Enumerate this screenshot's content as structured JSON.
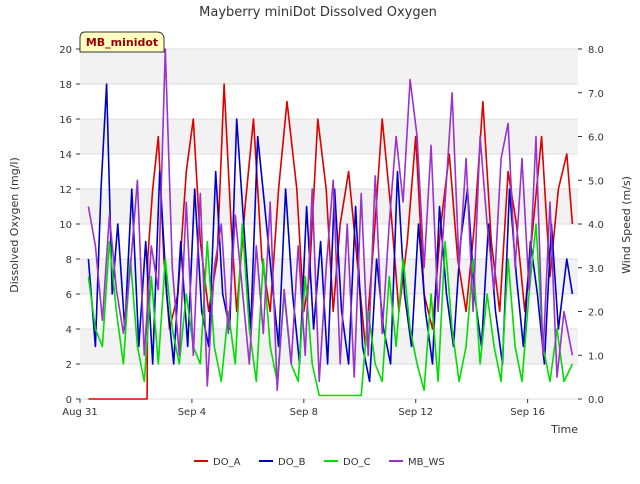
{
  "chart_data": {
    "type": "line",
    "title": "Mayberry miniDot Dissolved Oxygen",
    "xlabel": "Time",
    "ylabel": "Dissolved Oxygen (mg/l)",
    "y2label": "Wind Speed (m/s)",
    "badge": "MB_minidot",
    "xlim": [
      0,
      17.8
    ],
    "ylim": [
      0,
      20
    ],
    "y2lim": [
      0,
      8
    ],
    "x_ticks": [
      {
        "x": 0,
        "label": "Aug 31"
      },
      {
        "x": 4,
        "label": "Sep 4"
      },
      {
        "x": 8,
        "label": "Sep 8"
      },
      {
        "x": 12,
        "label": "Sep 12"
      },
      {
        "x": 16,
        "label": "Sep 16"
      }
    ],
    "y_ticks": [
      {
        "v": 0,
        "label": "0"
      },
      {
        "v": 2,
        "label": "2"
      },
      {
        "v": 4,
        "label": "4"
      },
      {
        "v": 6,
        "label": "6"
      },
      {
        "v": 8,
        "label": "8"
      },
      {
        "v": 10,
        "label": "10"
      },
      {
        "v": 12,
        "label": "12"
      },
      {
        "v": 14,
        "label": "14"
      },
      {
        "v": 16,
        "label": "16"
      },
      {
        "v": 18,
        "label": "18"
      },
      {
        "v": 20,
        "label": "20"
      }
    ],
    "y2_ticks": [
      {
        "v": 0,
        "label": "0.0"
      },
      {
        "v": 1,
        "label": "1.0"
      },
      {
        "v": 2,
        "label": "2.0"
      },
      {
        "v": 3,
        "label": "3.0"
      },
      {
        "v": 4,
        "label": "4.0"
      },
      {
        "v": 5,
        "label": "5.0"
      },
      {
        "v": 6,
        "label": "6.0"
      },
      {
        "v": 7,
        "label": "7.0"
      },
      {
        "v": 8,
        "label": "8.0"
      }
    ],
    "grid": true,
    "legend_position": "bottom",
    "series": [
      {
        "name": "DO_A",
        "color": "#dd0000",
        "axis": "left",
        "x": [
          0.3,
          1.2,
          2.4,
          2.42,
          2.6,
          2.8,
          3.0,
          3.2,
          3.5,
          3.8,
          4.05,
          4.3,
          4.6,
          4.9,
          5.15,
          5.4,
          5.6,
          5.9,
          6.2,
          6.5,
          6.8,
          7.1,
          7.4,
          7.75,
          8.0,
          8.2,
          8.5,
          8.8,
          9.05,
          9.3,
          9.6,
          9.9,
          10.2,
          10.5,
          10.8,
          11.1,
          11.4,
          11.7,
          12.0,
          12.3,
          12.6,
          12.9,
          13.2,
          13.5,
          13.8,
          14.1,
          14.4,
          14.7,
          15.0,
          15.3,
          15.6,
          15.9,
          16.2,
          16.5,
          16.8,
          17.1,
          17.4,
          17.6
        ],
        "y": [
          0,
          0,
          0,
          8,
          12,
          15,
          8,
          4,
          6,
          13,
          16,
          9,
          5,
          8,
          18,
          10,
          5,
          11,
          16,
          8,
          5,
          12,
          17,
          12,
          5,
          7,
          16,
          12,
          5,
          10,
          13,
          8,
          3,
          9,
          16,
          11,
          5,
          9,
          15,
          6,
          4,
          10,
          14,
          8,
          5,
          10,
          17,
          9,
          5,
          13,
          10,
          5,
          10,
          15,
          7,
          12,
          14,
          10
        ]
      },
      {
        "name": "DO_B",
        "color": "#0000cc",
        "axis": "left",
        "x": [
          0.3,
          0.55,
          0.75,
          0.95,
          1.15,
          1.35,
          1.6,
          1.85,
          2.1,
          2.35,
          2.6,
          2.85,
          3.1,
          3.35,
          3.6,
          3.85,
          4.1,
          4.35,
          4.6,
          4.85,
          5.1,
          5.35,
          5.6,
          5.85,
          6.1,
          6.35,
          6.6,
          6.85,
          7.1,
          7.35,
          7.6,
          7.85,
          8.1,
          8.35,
          8.6,
          8.85,
          9.1,
          9.35,
          9.6,
          9.85,
          10.1,
          10.35,
          10.6,
          10.85,
          11.1,
          11.35,
          11.6,
          11.85,
          12.1,
          12.35,
          12.6,
          12.85,
          13.1,
          13.35,
          13.6,
          13.85,
          14.1,
          14.35,
          14.6,
          14.85,
          15.1,
          15.35,
          15.6,
          15.85,
          16.1,
          16.35,
          16.6,
          16.85,
          17.1,
          17.4,
          17.6
        ],
        "y": [
          8,
          3,
          12,
          18,
          6,
          10,
          4,
          12,
          3,
          9,
          2,
          13,
          6,
          2,
          9,
          3,
          12,
          5,
          3,
          13,
          6,
          4,
          16,
          10,
          4,
          15,
          11,
          7,
          3,
          12,
          6,
          2,
          11,
          4,
          9,
          2,
          12,
          5,
          2,
          11,
          3,
          1,
          8,
          4,
          2,
          13,
          6,
          3,
          10,
          5,
          2,
          11,
          6,
          3,
          9,
          12,
          6,
          3,
          10,
          5,
          2,
          12,
          7,
          3,
          9,
          6,
          2,
          10,
          4,
          8,
          6
        ]
      },
      {
        "name": "DO_C",
        "color": "#00dd00",
        "axis": "left",
        "x": [
          0.3,
          0.55,
          0.8,
          1.05,
          1.3,
          1.55,
          1.8,
          2.05,
          2.3,
          2.55,
          2.8,
          3.05,
          3.3,
          3.55,
          3.8,
          4.05,
          4.3,
          4.55,
          4.8,
          5.05,
          5.3,
          5.55,
          5.8,
          6.05,
          6.3,
          6.55,
          6.8,
          7.05,
          7.3,
          7.55,
          7.8,
          8.05,
          8.3,
          8.55,
          8.8,
          9.05,
          9.3,
          9.55,
          9.8,
          10.05,
          10.3,
          10.55,
          10.8,
          11.05,
          11.3,
          11.55,
          11.8,
          12.05,
          12.3,
          12.55,
          12.8,
          13.05,
          13.3,
          13.55,
          13.8,
          14.05,
          14.3,
          14.55,
          14.8,
          15.05,
          15.3,
          15.55,
          15.8,
          16.05,
          16.3,
          16.55,
          16.8,
          17.05,
          17.3,
          17.6
        ],
        "y": [
          7,
          4,
          3,
          9,
          5,
          2,
          8,
          3,
          1,
          7,
          2,
          8,
          4,
          2,
          6,
          3,
          2,
          9,
          3,
          1,
          5,
          2,
          10,
          4,
          1,
          8,
          3,
          1,
          6,
          2,
          1,
          7,
          2,
          0.2,
          0.2,
          0.2,
          0.2,
          0.2,
          0.2,
          0.2,
          5,
          2,
          1,
          7,
          3,
          8,
          4,
          2,
          0.5,
          6,
          1,
          9,
          4,
          1,
          3,
          8,
          2,
          6,
          3,
          1,
          8,
          3,
          1,
          6,
          10,
          3,
          1,
          4,
          1,
          2
        ]
      },
      {
        "name": "MB_WS",
        "color": "#9933cc",
        "axis": "right",
        "x": [
          0.3,
          0.55,
          0.8,
          1.05,
          1.3,
          1.55,
          1.8,
          2.05,
          2.3,
          2.55,
          2.8,
          3.05,
          3.3,
          3.55,
          3.8,
          4.05,
          4.3,
          4.55,
          4.8,
          5.05,
          5.3,
          5.55,
          5.8,
          6.05,
          6.3,
          6.55,
          6.8,
          7.05,
          7.3,
          7.55,
          7.8,
          8.05,
          8.3,
          8.55,
          8.8,
          9.05,
          9.3,
          9.55,
          9.8,
          10.05,
          10.3,
          10.55,
          10.8,
          11.05,
          11.3,
          11.55,
          11.8,
          12.05,
          12.3,
          12.55,
          12.8,
          13.05,
          13.3,
          13.55,
          13.8,
          14.05,
          14.3,
          14.55,
          14.8,
          15.05,
          15.3,
          15.55,
          15.8,
          16.05,
          16.3,
          16.55,
          16.8,
          17.05,
          17.3,
          17.6
        ],
        "y": [
          4.4,
          3.5,
          1.8,
          4.2,
          2.5,
          1.5,
          3.0,
          5.0,
          1.0,
          3.5,
          2.5,
          8.0,
          3.0,
          1.0,
          4.5,
          1.0,
          4.7,
          0.3,
          3.0,
          4.0,
          1.5,
          4.2,
          2.5,
          0.8,
          3.5,
          1.5,
          4.5,
          0.2,
          2.5,
          0.8,
          3.5,
          1.0,
          4.8,
          0.4,
          3.0,
          5.0,
          0.8,
          4.0,
          0.5,
          4.7,
          1.0,
          5.1,
          1.5,
          4.0,
          6.0,
          4.5,
          7.3,
          6.0,
          3.0,
          5.8,
          2.0,
          4.5,
          7.0,
          3.0,
          5.5,
          2.0,
          6.0,
          4.0,
          2.5,
          5.5,
          6.3,
          3.0,
          5.5,
          2.5,
          6.0,
          1.0,
          4.5,
          0.5,
          2.0,
          1.0
        ]
      }
    ]
  }
}
